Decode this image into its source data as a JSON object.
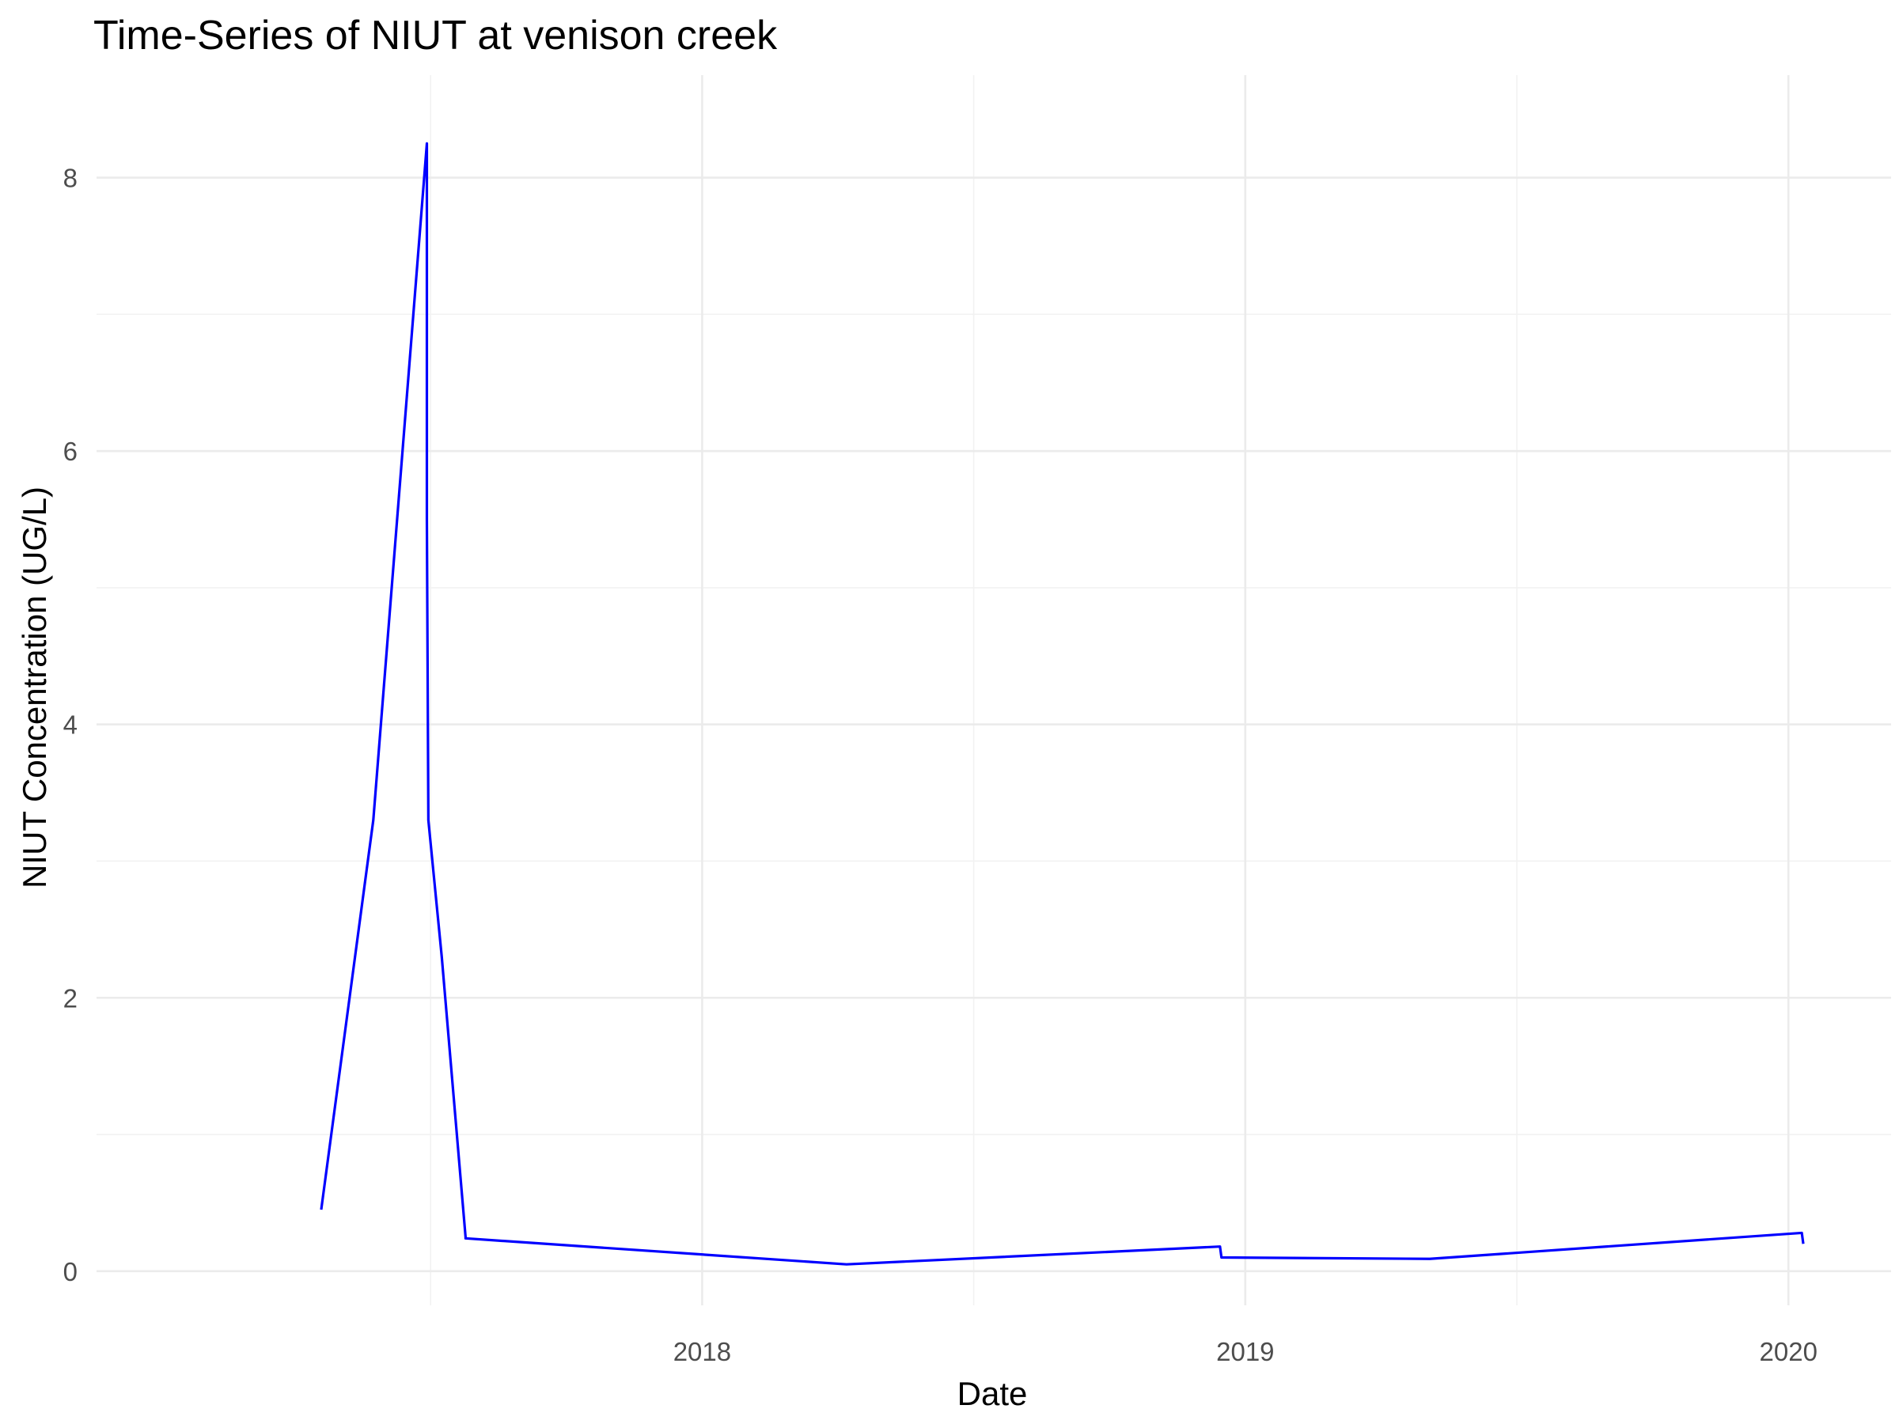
{
  "chart_data": {
    "type": "line",
    "title": "Time-Series of NIUT at venison creek",
    "xlabel": "Date",
    "ylabel": "NIUT Concentration (UG/L)",
    "x_ticks": [
      "2018-01-01",
      "2019-01-01",
      "2020-01-01"
    ],
    "x_tick_labels": [
      "2018",
      "2019",
      "2020"
    ],
    "y_ticks": [
      0,
      2,
      4,
      6,
      8
    ],
    "y_tick_labels": [
      "0",
      "2",
      "4",
      "6",
      "8"
    ],
    "xlim": [
      "2016-11-20",
      "2020-03-10"
    ],
    "ylim": [
      -0.25,
      8.75
    ],
    "grid": true,
    "legend": "none",
    "series": [
      {
        "color": "#0000ff",
        "x": [
          "2017-04-20",
          "2017-05-25",
          "2017-06-30",
          "2017-06-30",
          "2017-07-01",
          "2017-07-01",
          "2017-07-10",
          "2017-07-26",
          "2017-07-26",
          "2018-04-08",
          "2018-12-15",
          "2018-12-16",
          "2019-05-05",
          "2020-01-10",
          "2020-01-11"
        ],
        "y": [
          0.45,
          3.3,
          8.25,
          5.5,
          3.3,
          3.3,
          2.3,
          0.25,
          0.24,
          0.05,
          0.18,
          0.1,
          0.09,
          0.28,
          0.2
        ]
      }
    ]
  }
}
